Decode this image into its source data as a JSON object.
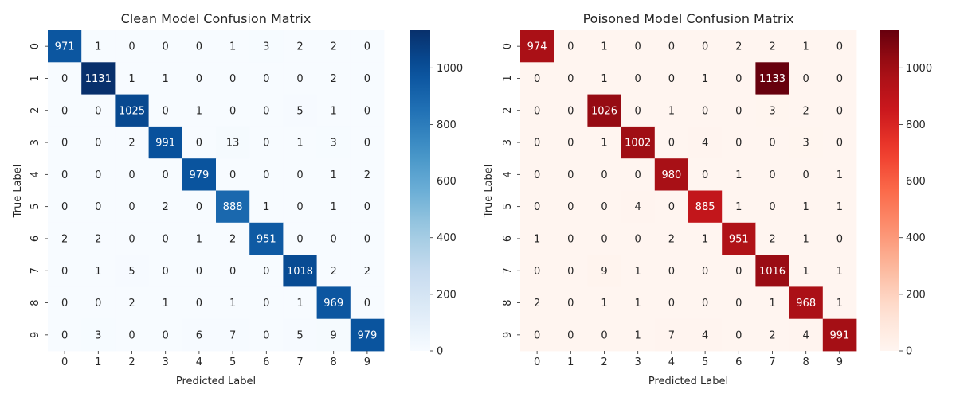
{
  "chart_data": [
    {
      "type": "heatmap",
      "title": "Clean Model Confusion Matrix",
      "xlabel": "Predicted Label",
      "ylabel": "True Label",
      "x_ticks": [
        "0",
        "1",
        "2",
        "3",
        "4",
        "5",
        "6",
        "7",
        "8",
        "9"
      ],
      "y_ticks": [
        "0",
        "1",
        "2",
        "3",
        "4",
        "5",
        "6",
        "7",
        "8",
        "9"
      ],
      "colormap": "Blues",
      "color_low": "#f7fbff",
      "color_high": "#08306b",
      "vmin": 0,
      "vmax": 1133,
      "colorbar_ticks": [
        0,
        200,
        400,
        600,
        800,
        1000
      ],
      "matrix": [
        [
          971,
          1,
          0,
          0,
          0,
          1,
          3,
          2,
          2,
          0
        ],
        [
          0,
          1131,
          1,
          1,
          0,
          0,
          0,
          0,
          2,
          0
        ],
        [
          0,
          0,
          1025,
          0,
          1,
          0,
          0,
          5,
          1,
          0
        ],
        [
          0,
          0,
          2,
          991,
          0,
          13,
          0,
          1,
          3,
          0
        ],
        [
          0,
          0,
          0,
          0,
          979,
          0,
          0,
          0,
          1,
          2
        ],
        [
          0,
          0,
          0,
          2,
          0,
          888,
          1,
          0,
          1,
          0
        ],
        [
          2,
          2,
          0,
          0,
          1,
          2,
          951,
          0,
          0,
          0
        ],
        [
          0,
          1,
          5,
          0,
          0,
          0,
          0,
          1018,
          2,
          2
        ],
        [
          0,
          0,
          2,
          1,
          0,
          1,
          0,
          1,
          969,
          0
        ],
        [
          0,
          3,
          0,
          0,
          6,
          7,
          0,
          5,
          9,
          979
        ]
      ]
    },
    {
      "type": "heatmap",
      "title": "Poisoned Model Confusion Matrix",
      "xlabel": "Predicted Label",
      "ylabel": "True Label",
      "x_ticks": [
        "0",
        "1",
        "2",
        "3",
        "4",
        "5",
        "6",
        "7",
        "8",
        "9"
      ],
      "y_ticks": [
        "0",
        "1",
        "2",
        "3",
        "4",
        "5",
        "6",
        "7",
        "8",
        "9"
      ],
      "colormap": "Reds",
      "color_low": "#fff5f0",
      "color_high": "#67000d",
      "vmin": 0,
      "vmax": 1133,
      "colorbar_ticks": [
        0,
        200,
        400,
        600,
        800,
        1000
      ],
      "matrix": [
        [
          974,
          0,
          1,
          0,
          0,
          0,
          2,
          2,
          1,
          0
        ],
        [
          0,
          0,
          1,
          0,
          0,
          1,
          0,
          1133,
          0,
          0
        ],
        [
          0,
          0,
          1026,
          0,
          1,
          0,
          0,
          3,
          2,
          0
        ],
        [
          0,
          0,
          1,
          1002,
          0,
          4,
          0,
          0,
          3,
          0
        ],
        [
          0,
          0,
          0,
          0,
          980,
          0,
          1,
          0,
          0,
          1
        ],
        [
          0,
          0,
          0,
          4,
          0,
          885,
          1,
          0,
          1,
          1
        ],
        [
          1,
          0,
          0,
          0,
          2,
          1,
          951,
          2,
          1,
          0
        ],
        [
          0,
          0,
          9,
          1,
          0,
          0,
          0,
          1016,
          1,
          1
        ],
        [
          2,
          0,
          1,
          1,
          0,
          0,
          0,
          1,
          968,
          1
        ],
        [
          0,
          0,
          0,
          1,
          7,
          4,
          0,
          2,
          4,
          991
        ]
      ]
    }
  ]
}
